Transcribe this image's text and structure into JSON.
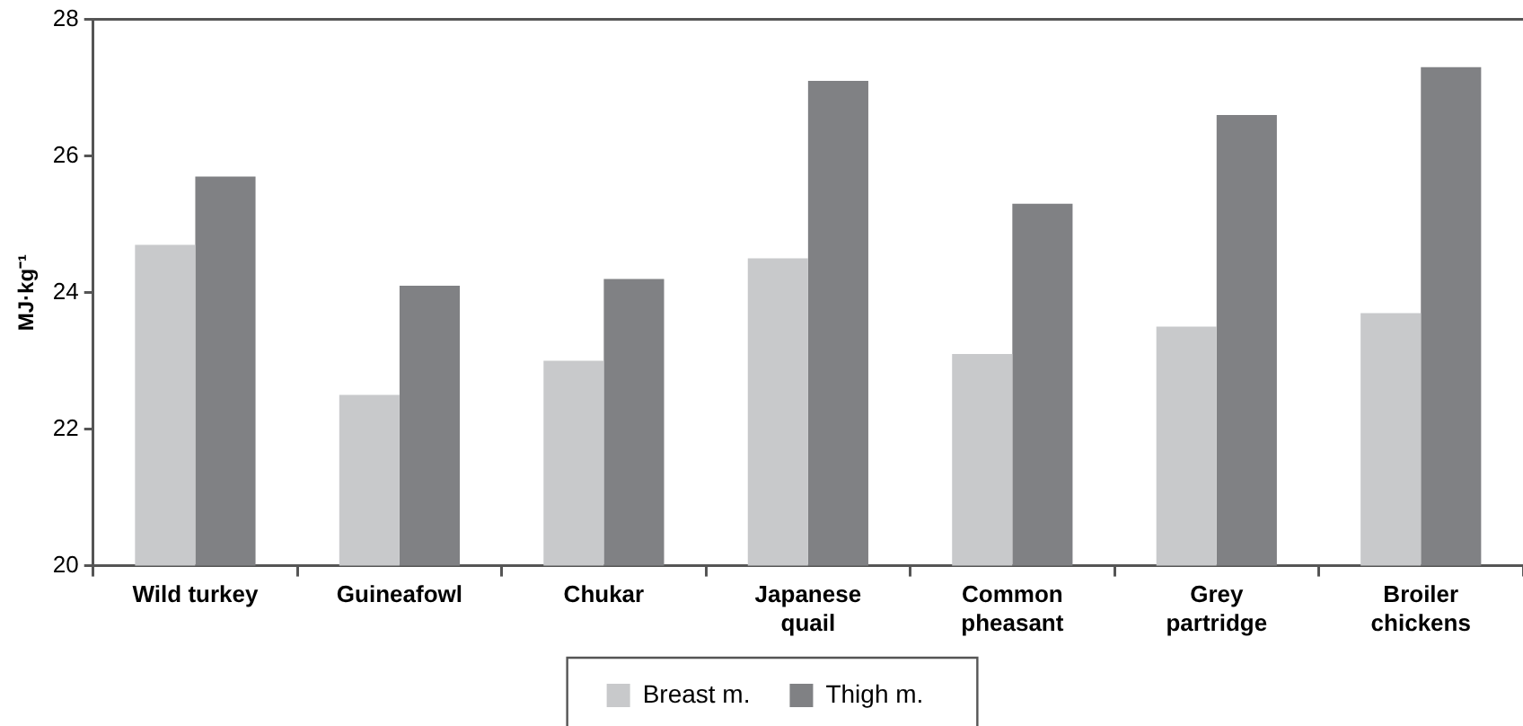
{
  "chart_data": {
    "type": "bar",
    "ylabel": "MJ·kg⁻¹",
    "categories": [
      "Wild turkey",
      "Guineafowl",
      "Chukar",
      "Japanese quail",
      "Common pheasant",
      "Grey partridge",
      "Broiler chickens"
    ],
    "series": [
      {
        "name": "Breast m.",
        "color": "#c8c9cb",
        "values": [
          24.7,
          22.5,
          23.0,
          24.5,
          23.1,
          23.5,
          23.7
        ]
      },
      {
        "name": "Thigh m.",
        "color": "#808184",
        "values": [
          25.7,
          24.1,
          24.2,
          27.1,
          25.3,
          26.6,
          27.3
        ]
      }
    ],
    "ylim": [
      20,
      28
    ],
    "yticks": [
      20,
      22,
      24,
      26,
      28
    ],
    "grid": false,
    "legend": "bottom"
  }
}
